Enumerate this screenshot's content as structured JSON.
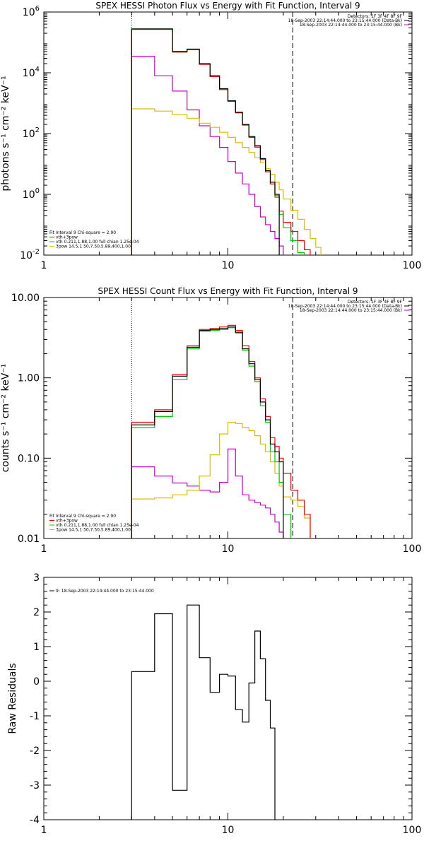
{
  "panels": [
    {
      "title": "SPEX HESSI Photon Flux vs Energy with Fit Function, Interval 9",
      "ylabel": "photons s⁻¹ cm⁻² keV⁻¹",
      "y_ticks": [
        {
          "value": 0.01,
          "base": "10",
          "exp": "-2"
        },
        {
          "value": 1,
          "base": "10",
          "exp": "0"
        },
        {
          "value": 100,
          "base": "10",
          "exp": "2"
        },
        {
          "value": 10000,
          "base": "10",
          "exp": "4"
        },
        {
          "value": 1000000,
          "base": "10",
          "exp": "6"
        }
      ],
      "x_ticks": [
        "1",
        "10",
        "100"
      ],
      "legend_right": [
        {
          "text": "Detectors: 1F 3F 4F 8F 9F",
          "color": ""
        },
        {
          "text": "18-Sep-2003 22:14:44.000 to 23:15:44.000 (Data-Bk)",
          "color": "#000000"
        },
        {
          "text": "18-Sep-2003 22:14:44.000 to 23:15:44.000 (Bk)",
          "color": "#cc00cc"
        }
      ],
      "legend_left": [
        {
          "text": "Fit Interval 9   Chi-square = 2.90",
          "color": ""
        },
        {
          "text": "vth+3pow",
          "color": "#ff0000"
        },
        {
          "text": "vth 0.211,1.88,1.00   full chian 1.25e-04",
          "color": "#00cc00"
        },
        {
          "text": "3pow 14.5,1.50,7.50,5.89,400,1.00",
          "color": "#ddbb00"
        }
      ]
    },
    {
      "title": "SPEX HESSI Count Flux vs Energy with Fit Function, Interval 9",
      "ylabel": "counts s⁻¹ cm⁻² keV⁻¹",
      "y_ticks": [
        {
          "value": 0.01,
          "label": "0.01"
        },
        {
          "value": 0.1,
          "label": "0.10"
        },
        {
          "value": 1,
          "label": "1.00"
        },
        {
          "value": 10,
          "label": "10.00"
        }
      ],
      "x_ticks": [
        "1",
        "10",
        "100"
      ],
      "legend_right": [
        {
          "text": "Detectors: 1F 3F 4F 8F 9F",
          "color": ""
        },
        {
          "text": "18-Sep-2003 22:14:44.000 to 23:15:44.000 (Data-Bk)",
          "color": "#000000"
        },
        {
          "text": "18-Sep-2003 22:14:44.000 to 23:15:44.000 (Bk)",
          "color": "#cc00cc"
        }
      ],
      "legend_left": [
        {
          "text": "Fit Interval 9   Chi-square = 2.90",
          "color": ""
        },
        {
          "text": "vth+3pow",
          "color": "#ff0000"
        },
        {
          "text": "vth 0.211,1.88,1.00   full chian 1.25e-04",
          "color": "#00cc00"
        },
        {
          "text": "3pow 14.5,1.50,7.50,5.89,400,1.00",
          "color": "#ddbb00"
        }
      ]
    },
    {
      "title": "",
      "ylabel": "Raw Residuals",
      "y_ticks": [
        {
          "value": -4,
          "label": "-4"
        },
        {
          "value": -3,
          "label": "-3"
        },
        {
          "value": -2,
          "label": "-2"
        },
        {
          "value": -1,
          "label": "-1"
        },
        {
          "value": 0,
          "label": "0"
        },
        {
          "value": 1,
          "label": "1"
        },
        {
          "value": 2,
          "label": "2"
        },
        {
          "value": 3,
          "label": "3"
        }
      ],
      "x_ticks": [
        "1",
        "10",
        "100"
      ],
      "legend_left": [
        {
          "text": "9: 18-Sep-2003 22:14:44.000 to 23:15:44.000",
          "color": "#000000"
        }
      ]
    }
  ],
  "chart_data": [
    {
      "type": "line",
      "title": "SPEX HESSI Photon Flux vs Energy with Fit Function, Interval 9",
      "xlabel": "",
      "ylabel": "photons s-1 cm-2 keV-1",
      "x_scale": "log",
      "y_scale": "log",
      "xlim": [
        1,
        100
      ],
      "ylim": [
        0.01,
        1000000
      ],
      "vlines": [
        {
          "x": 3,
          "style": "dotted"
        },
        {
          "x": 22.5,
          "style": "dashed"
        }
      ],
      "edges": [
        3,
        4,
        5,
        6,
        7,
        8,
        9,
        10,
        11,
        12,
        13,
        14,
        15,
        16,
        17,
        18,
        19,
        20,
        22,
        24,
        26,
        28,
        30,
        32,
        34,
        36,
        38,
        40
      ],
      "series": [
        {
          "name": "data",
          "color": "#000000",
          "values": [
            280000,
            280000,
            50000,
            60000,
            20000,
            8000,
            3000,
            1200,
            500,
            200,
            80,
            40,
            15,
            6,
            2.5,
            1
          ]
        },
        {
          "name": "vth+3pow",
          "color": "#ff0000",
          "values": [
            270000,
            270000,
            48000,
            58000,
            19000,
            7500,
            2800,
            1150,
            480,
            190,
            75,
            36,
            14,
            5.5,
            2.2,
            0.9,
            0.28,
            0.12,
            0.06,
            0.03,
            0.015
          ]
        },
        {
          "name": "vth",
          "color": "#00cc00",
          "values": [
            270000,
            270000,
            48000,
            58000,
            19000,
            7500,
            2800,
            1150,
            480,
            190,
            75,
            36,
            14,
            5.5,
            2.2,
            0.8,
            0.22,
            0.08,
            0.03,
            0.012,
            0.005
          ]
        },
        {
          "name": "3pow",
          "color": "#ddbb00",
          "values": [
            650,
            550,
            420,
            320,
            220,
            160,
            110,
            75,
            50,
            35,
            24,
            16,
            11,
            7,
            4.5,
            2.5,
            1.4,
            0.7,
            0.3,
            0.15,
            0.07,
            0.035,
            0.018,
            0.009
          ]
        },
        {
          "name": "background",
          "color": "#cc00cc",
          "values": [
            35000,
            8000,
            2500,
            600,
            180,
            80,
            35,
            12,
            5,
            2.2,
            1,
            0.4,
            0.18,
            0.1,
            0.06,
            0.035,
            0.02,
            0.008
          ]
        }
      ]
    },
    {
      "type": "line",
      "title": "SPEX HESSI Count Flux vs Energy with Fit Function, Interval 9",
      "xlabel": "",
      "ylabel": "counts s-1 cm-2 keV-1",
      "x_scale": "log",
      "y_scale": "log",
      "xlim": [
        1,
        100
      ],
      "ylim": [
        0.01,
        10
      ],
      "vlines": [
        {
          "x": 3,
          "style": "dotted"
        },
        {
          "x": 22.5,
          "style": "dashed"
        }
      ],
      "edges": [
        3,
        4,
        5,
        6,
        7,
        8,
        9,
        10,
        11,
        12,
        13,
        14,
        15,
        16,
        17,
        18,
        19,
        20,
        22,
        24,
        26,
        28,
        30
      ],
      "series": [
        {
          "name": "data",
          "color": "#000000",
          "values": [
            0.26,
            0.38,
            1.05,
            2.4,
            3.9,
            4.0,
            4.1,
            4.3,
            3.7,
            2.3,
            1.5,
            0.95,
            0.5,
            0.3,
            0.15,
            0.12,
            0.09
          ]
        },
        {
          "name": "vth+3pow",
          "color": "#ff0000",
          "values": [
            0.28,
            0.4,
            1.1,
            2.5,
            4.0,
            4.1,
            4.3,
            4.5,
            3.9,
            2.5,
            1.6,
            1.0,
            0.55,
            0.33,
            0.18,
            0.14,
            0.1,
            0.065,
            0.04,
            0.03,
            0.02
          ]
        },
        {
          "name": "vth",
          "color": "#00cc00",
          "values": [
            0.24,
            0.33,
            0.95,
            2.3,
            3.8,
            3.9,
            4.0,
            4.2,
            3.6,
            2.2,
            1.4,
            0.9,
            0.45,
            0.28,
            0.12,
            0.09,
            0.05,
            0.02
          ]
        },
        {
          "name": "3pow",
          "color": "#ddbb00",
          "values": [
            0.031,
            0.032,
            0.035,
            0.04,
            0.06,
            0.11,
            0.2,
            0.28,
            0.27,
            0.24,
            0.22,
            0.19,
            0.15,
            0.12,
            0.09,
            0.065,
            0.045,
            0.033,
            0.03,
            0.025,
            0.018
          ]
        },
        {
          "name": "background",
          "color": "#cc00cc",
          "values": [
            0.078,
            0.06,
            0.049,
            0.045,
            0.04,
            0.038,
            0.05,
            0.13,
            0.06,
            0.035,
            0.03,
            0.028,
            0.026,
            0.024,
            0.02,
            0.016,
            0.012
          ]
        }
      ]
    },
    {
      "type": "line",
      "title": "",
      "xlabel": "",
      "ylabel": "Raw Residuals",
      "x_scale": "log",
      "y_scale": "linear",
      "xlim": [
        1,
        100
      ],
      "ylim": [
        -4,
        3
      ],
      "edges": [
        3,
        4,
        5,
        6,
        7,
        8,
        9,
        10,
        11,
        12,
        13,
        14,
        15,
        16,
        17,
        18,
        19,
        20,
        22
      ],
      "series": [
        {
          "name": "9: 18-Sep-2003 22:14:44.000 to 23:15:44.000",
          "color": "#000000",
          "values": [
            0.28,
            1.95,
            -3.15,
            2.2,
            0.68,
            -0.32,
            0.2,
            0.15,
            -0.82,
            -1.18,
            -0.05,
            1.45,
            0.65,
            -0.55,
            -1.35
          ]
        }
      ]
    }
  ]
}
